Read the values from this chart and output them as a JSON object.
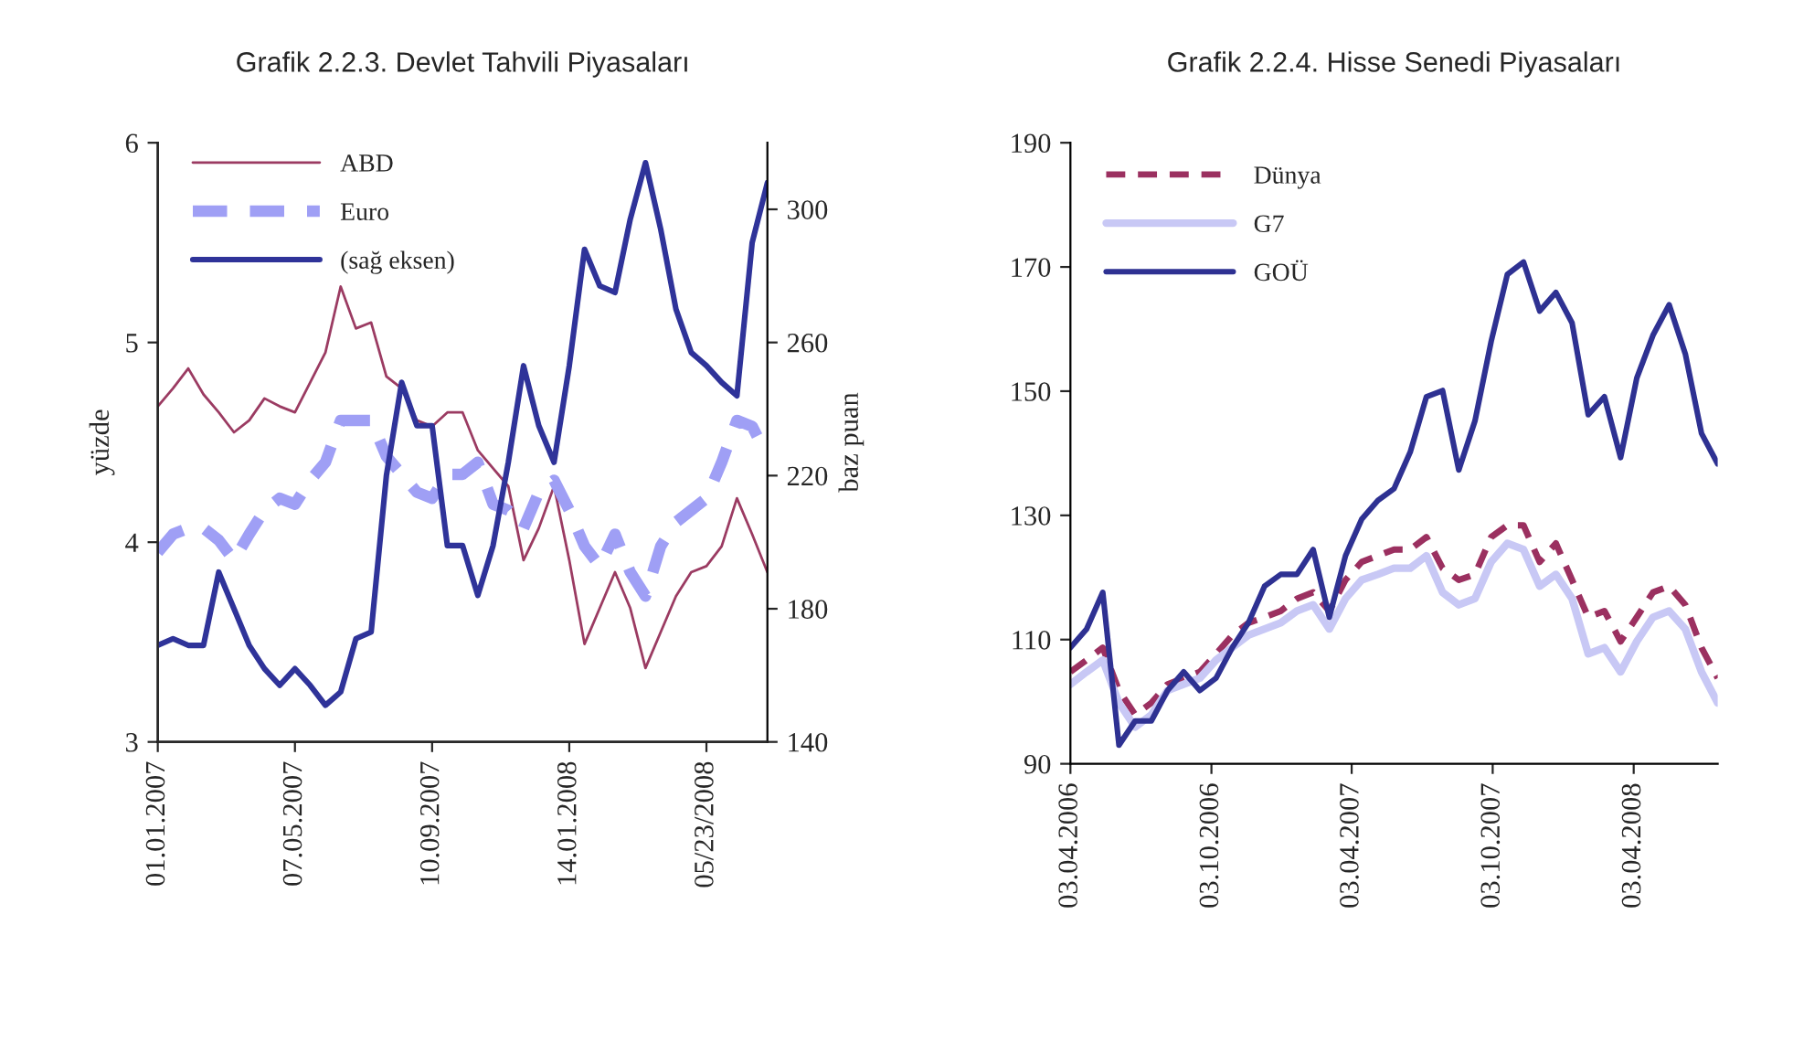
{
  "chart_data": [
    {
      "type": "line",
      "title": "Grafik 2.2.3. Devlet Tahvili Piyasaları",
      "ylabel": "yüzde",
      "y2label": "baz puan",
      "x": [
        "2007-01-01",
        "2007-01-15",
        "2007-01-29",
        "2007-02-12",
        "2007-02-26",
        "2007-03-12",
        "2007-03-26",
        "2007-04-09",
        "2007-04-23",
        "2007-05-07",
        "2007-05-21",
        "2007-06-04",
        "2007-06-18",
        "2007-07-02",
        "2007-07-16",
        "2007-07-30",
        "2007-08-13",
        "2007-08-27",
        "2007-09-10",
        "2007-09-24",
        "2007-10-08",
        "2007-10-22",
        "2007-11-05",
        "2007-11-19",
        "2007-12-03",
        "2007-12-17",
        "2007-12-31",
        "2008-01-14",
        "2008-01-28",
        "2008-02-11",
        "2008-02-25",
        "2008-03-10",
        "2008-03-24",
        "2008-04-07",
        "2008-04-21",
        "2008-05-05",
        "2008-05-19",
        "2008-06-02",
        "2008-06-16",
        "2008-06-30",
        "2008-07-14"
      ],
      "xlim": [
        "2007-01-01",
        "2008-07-14"
      ],
      "xticks": [
        {
          "value": "2007-01-01",
          "label": "01.01.2007"
        },
        {
          "value": "2007-05-07",
          "label": "07.05.2007"
        },
        {
          "value": "2007-09-10",
          "label": "10.09.2007"
        },
        {
          "value": "2008-01-14",
          "label": "14.01.2008"
        },
        {
          "value": "2008-05-19",
          "label": "05/23/2008"
        }
      ],
      "ylim": [
        3,
        6
      ],
      "yticks": [
        3,
        4,
        5,
        6
      ],
      "y2lim": [
        140,
        320
      ],
      "y2ticks": [
        140,
        180,
        220,
        260,
        300
      ],
      "grid": false,
      "legend": "top left",
      "series": [
        {
          "name": "ABD",
          "color": "#9b3b62",
          "line_style": "solid",
          "values": [
            4.68,
            4.77,
            4.87,
            4.74,
            4.65,
            4.55,
            4.61,
            4.72,
            4.68,
            4.65,
            4.8,
            4.95,
            5.28,
            5.07,
            5.1,
            4.83,
            4.77,
            4.61,
            4.58,
            4.65,
            4.65,
            4.46,
            4.37,
            4.28,
            3.91,
            4.07,
            4.28,
            3.91,
            3.49,
            3.67,
            3.85,
            3.67,
            3.37,
            3.55,
            3.73,
            3.85,
            3.88,
            3.98,
            4.22,
            4.04,
            3.85
          ]
        },
        {
          "name": "Euro",
          "color": "#9f9ff5",
          "line_style": "dashed",
          "values": [
            3.95,
            4.04,
            4.07,
            4.07,
            4.01,
            3.91,
            4.04,
            4.16,
            4.22,
            4.19,
            4.31,
            4.4,
            4.61,
            4.61,
            4.61,
            4.43,
            4.34,
            4.25,
            4.22,
            4.34,
            4.34,
            4.4,
            4.19,
            4.16,
            4.07,
            4.25,
            4.31,
            4.16,
            3.98,
            3.88,
            4.04,
            3.85,
            3.73,
            3.98,
            4.1,
            4.16,
            4.22,
            4.4,
            4.61,
            4.58,
            4.43
          ]
        },
        {
          "name": "(sağ eksen)",
          "color": "#2f3399",
          "line_style": "solid",
          "axis": "y2",
          "values": [
            169,
            171,
            169,
            169,
            191,
            180,
            169,
            162,
            157,
            162,
            157,
            151,
            155,
            171,
            173,
            220,
            248,
            235,
            235,
            199,
            199,
            184,
            199,
            224,
            253,
            235,
            224,
            253,
            288,
            277,
            275,
            297,
            314,
            294,
            270,
            257,
            253,
            248,
            244,
            290,
            308
          ]
        }
      ]
    },
    {
      "type": "line",
      "title": "Grafik 2.2.4. Hisse Senedi Piyasaları",
      "x": [
        "2006-04-03",
        "2006-04-24",
        "2006-05-15",
        "2006-06-05",
        "2006-06-26",
        "2006-07-17",
        "2006-08-07",
        "2006-08-28",
        "2006-09-18",
        "2006-10-09",
        "2006-10-30",
        "2006-11-20",
        "2006-12-11",
        "2007-01-01",
        "2007-01-22",
        "2007-02-12",
        "2007-03-05",
        "2007-03-26",
        "2007-04-16",
        "2007-05-07",
        "2007-05-28",
        "2007-06-18",
        "2007-07-09",
        "2007-07-30",
        "2007-08-20",
        "2007-09-10",
        "2007-10-01",
        "2007-10-22",
        "2007-11-12",
        "2007-12-03",
        "2007-12-24",
        "2008-01-14",
        "2008-02-04",
        "2008-02-25",
        "2008-03-17",
        "2008-04-07",
        "2008-04-28",
        "2008-05-19",
        "2008-06-09",
        "2008-06-30",
        "2008-07-21"
      ],
      "xlim": [
        "2006-04-03",
        "2008-07-21"
      ],
      "xticks": [
        {
          "value": "2006-04-03",
          "label": "03.04.2006"
        },
        {
          "value": "2006-10-03",
          "label": "03.10.2006"
        },
        {
          "value": "2007-04-03",
          "label": "03.04.2007"
        },
        {
          "value": "2007-10-03",
          "label": "03.10.2007"
        },
        {
          "value": "2008-04-03",
          "label": "03.04.2008"
        }
      ],
      "ylim": [
        90,
        190
      ],
      "yticks": [
        90,
        110,
        130,
        150,
        170,
        190
      ],
      "grid": false,
      "legend": "top left",
      "series": [
        {
          "name": "Dünya",
          "color": "#9b3060",
          "line_style": "dashed",
          "values": [
            104.8,
            106.7,
            108.7,
            101.8,
            97.9,
            99.8,
            102.8,
            103.8,
            104.8,
            107.7,
            110.7,
            112.7,
            113.6,
            114.6,
            116.6,
            117.6,
            114.6,
            119.6,
            122.5,
            123.5,
            124.5,
            124.5,
            126.5,
            121.5,
            119.6,
            120.5,
            126.5,
            128.4,
            128.4,
            122.5,
            125.5,
            119.6,
            113.6,
            114.6,
            109.7,
            113.6,
            117.6,
            118.6,
            115.6,
            108.7,
            103.8
          ]
        },
        {
          "name": "G7",
          "color": "#c8c8f5",
          "line_style": "solid",
          "values": [
            102.8,
            104.8,
            106.7,
            99.8,
            95.9,
            97.9,
            101.8,
            102.8,
            103.8,
            106.7,
            108.7,
            110.7,
            111.7,
            112.7,
            114.6,
            115.6,
            111.7,
            116.6,
            119.6,
            120.5,
            121.5,
            121.5,
            123.5,
            117.6,
            115.6,
            116.6,
            122.5,
            125.5,
            124.5,
            118.6,
            120.5,
            116.6,
            107.7,
            108.7,
            104.8,
            109.7,
            113.6,
            114.6,
            111.7,
            104.8,
            99.8
          ]
        },
        {
          "name": "GOÜ",
          "color": "#2e3192",
          "line_style": "solid",
          "values": [
            108.7,
            111.7,
            117.6,
            93.0,
            96.9,
            96.9,
            101.8,
            104.8,
            101.8,
            103.8,
            108.7,
            112.7,
            118.6,
            120.5,
            120.5,
            124.5,
            113.6,
            123.5,
            129.4,
            132.4,
            134.3,
            140.2,
            149.1,
            150.1,
            137.3,
            145.2,
            158.0,
            168.8,
            170.8,
            162.9,
            165.9,
            161.0,
            146.2,
            149.1,
            139.3,
            152.1,
            159.0,
            163.9,
            156.0,
            143.2,
            138.3
          ]
        }
      ]
    }
  ]
}
